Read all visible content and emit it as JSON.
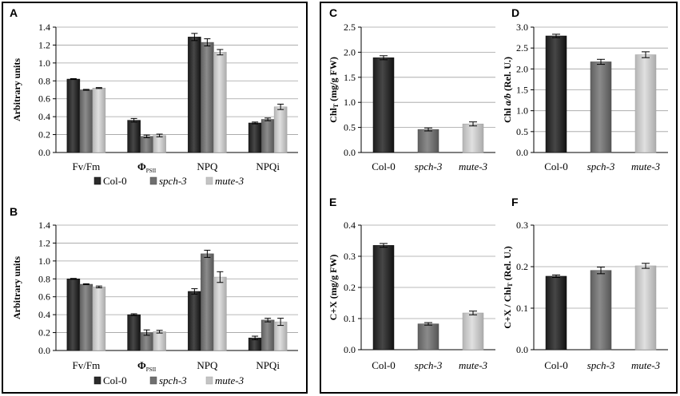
{
  "colors": {
    "col0": "#2b2b2b",
    "spch3": "#6f6f6f",
    "mute3": "#c4c4c4",
    "grid": "#a0a0a0",
    "frame": "#000000"
  },
  "legend": [
    "Col-0",
    "spch-3",
    "mute-3"
  ],
  "chart_data": [
    {
      "id": "A",
      "letter": "A",
      "type": "bar",
      "ylabel": "Arbitrary units",
      "ylim": [
        0,
        1.4
      ],
      "yticks": [
        "0.0",
        "0.2",
        "0.4",
        "0.6",
        "0.8",
        "1.0",
        "1.2",
        "1.4"
      ],
      "categories": [
        "Fv/Fm",
        "ΦPSII",
        "NPQ",
        "NPQi"
      ],
      "series": [
        {
          "name": "Col-0",
          "values": [
            0.82,
            0.36,
            1.29,
            0.33
          ],
          "errors": [
            0.005,
            0.02,
            0.04,
            0.01
          ]
        },
        {
          "name": "spch-3",
          "values": [
            0.7,
            0.18,
            1.23,
            0.37
          ],
          "errors": [
            0.005,
            0.015,
            0.04,
            0.015
          ]
        },
        {
          "name": "mute-3",
          "values": [
            0.72,
            0.19,
            1.12,
            0.51
          ],
          "errors": [
            0.005,
            0.015,
            0.03,
            0.03
          ]
        }
      ]
    },
    {
      "id": "B",
      "letter": "B",
      "type": "bar",
      "ylabel": "Arbitrary units",
      "ylim": [
        0,
        1.4
      ],
      "yticks": [
        "0.0",
        "0.2",
        "0.4",
        "0.6",
        "0.8",
        "1.0",
        "1.2",
        "1.4"
      ],
      "categories": [
        "Fv/Fm",
        "ΦPSII",
        "NPQ",
        "NPQi"
      ],
      "series": [
        {
          "name": "Col-0",
          "values": [
            0.8,
            0.4,
            0.66,
            0.14
          ],
          "errors": [
            0.005,
            0.01,
            0.03,
            0.02
          ]
        },
        {
          "name": "spch-3",
          "values": [
            0.74,
            0.2,
            1.08,
            0.34
          ],
          "errors": [
            0.005,
            0.03,
            0.04,
            0.02
          ]
        },
        {
          "name": "mute-3",
          "values": [
            0.71,
            0.21,
            0.82,
            0.32
          ],
          "errors": [
            0.01,
            0.015,
            0.06,
            0.04
          ]
        }
      ]
    },
    {
      "id": "C",
      "letter": "C",
      "type": "bar",
      "ylabel": "ChlT (mg/g FW)",
      "ylim": [
        0,
        2.5
      ],
      "yticks": [
        "0.0",
        "0.5",
        "1.0",
        "1.5",
        "2.0",
        "2.5"
      ],
      "categories": [
        "Col-0",
        "spch-3",
        "mute-3"
      ],
      "values": [
        1.89,
        0.46,
        0.57
      ],
      "errors": [
        0.04,
        0.03,
        0.04
      ]
    },
    {
      "id": "D",
      "letter": "D",
      "type": "bar",
      "ylabel": "Chl a/b (Rel. U.)",
      "ylim": [
        0,
        3.0
      ],
      "yticks": [
        "0.0",
        "0.5",
        "1.0",
        "1.5",
        "2.0",
        "2.5",
        "3.0"
      ],
      "categories": [
        "Col-0",
        "spch-3",
        "mute-3"
      ],
      "values": [
        2.79,
        2.17,
        2.34
      ],
      "errors": [
        0.04,
        0.06,
        0.07
      ]
    },
    {
      "id": "E",
      "letter": "E",
      "type": "bar",
      "ylabel": "C+X (mg/g FW)",
      "ylim": [
        0,
        0.4
      ],
      "yticks": [
        "0.0",
        "0.1",
        "0.2",
        "0.3",
        "0.4"
      ],
      "categories": [
        "Col-0",
        "spch-3",
        "mute-3"
      ],
      "values": [
        0.335,
        0.083,
        0.118
      ],
      "errors": [
        0.006,
        0.004,
        0.006
      ]
    },
    {
      "id": "F",
      "letter": "F",
      "type": "bar",
      "ylabel": "C+X / ChlT (Rel. U.)",
      "ylim": [
        0,
        0.3
      ],
      "yticks": [
        "0.0",
        "0.1",
        "0.2",
        "0.3"
      ],
      "categories": [
        "Col-0",
        "spch-3",
        "mute-3"
      ],
      "values": [
        0.177,
        0.191,
        0.202
      ],
      "errors": [
        0.003,
        0.008,
        0.006
      ]
    }
  ]
}
